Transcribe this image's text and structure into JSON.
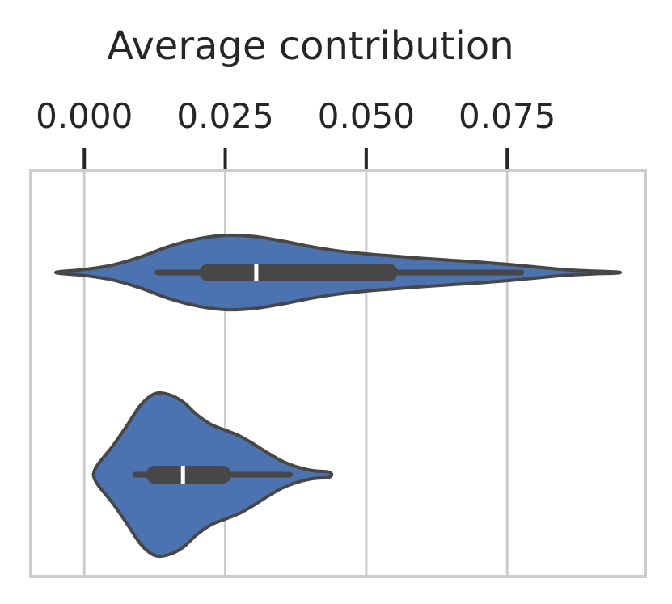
{
  "chart_data": {
    "type": "violin",
    "orientation": "horizontal",
    "title": "",
    "xlabel": "Average contribution",
    "x_axis_position": "top",
    "xlim": [
      -0.0095,
      0.0995
    ],
    "xticks": [
      0.0,
      0.025,
      0.05,
      0.075
    ],
    "xtick_labels": [
      "0.000",
      "0.025",
      "0.050",
      "0.075"
    ],
    "grid": true,
    "colors": {
      "violin_fill": "#4c72b0",
      "violin_edge": "#474747",
      "box": "#474747",
      "median": "#ffffff",
      "grid": "#cccccc",
      "frame": "#cccccc"
    },
    "series": [
      {
        "whisker_low": 0.013,
        "q1": 0.022,
        "median": 0.0305,
        "q3": 0.054,
        "whisker_high": 0.0775,
        "density": [
          [
            -0.0045,
            0.02
          ],
          [
            0.0,
            0.08
          ],
          [
            0.005,
            0.2
          ],
          [
            0.01,
            0.42
          ],
          [
            0.015,
            0.7
          ],
          [
            0.02,
            0.9
          ],
          [
            0.025,
            1.0
          ],
          [
            0.03,
            0.97
          ],
          [
            0.035,
            0.85
          ],
          [
            0.04,
            0.7
          ],
          [
            0.045,
            0.58
          ],
          [
            0.05,
            0.5
          ],
          [
            0.055,
            0.44
          ],
          [
            0.06,
            0.38
          ],
          [
            0.065,
            0.33
          ],
          [
            0.07,
            0.28
          ],
          [
            0.075,
            0.22
          ],
          [
            0.08,
            0.15
          ],
          [
            0.085,
            0.08
          ],
          [
            0.09,
            0.04
          ],
          [
            0.0945,
            0.015
          ]
        ]
      },
      {
        "whisker_low": 0.009,
        "q1": 0.0125,
        "median": 0.0175,
        "q3": 0.0245,
        "whisker_high": 0.0365,
        "density": [
          [
            0.002,
            0.08
          ],
          [
            0.005,
            0.35
          ],
          [
            0.0075,
            0.6
          ],
          [
            0.01,
            0.86
          ],
          [
            0.0125,
            1.0
          ],
          [
            0.015,
            0.99
          ],
          [
            0.0175,
            0.9
          ],
          [
            0.02,
            0.74
          ],
          [
            0.0225,
            0.62
          ],
          [
            0.025,
            0.55
          ],
          [
            0.0275,
            0.48
          ],
          [
            0.03,
            0.38
          ],
          [
            0.0325,
            0.27
          ],
          [
            0.035,
            0.17
          ],
          [
            0.0375,
            0.1
          ],
          [
            0.0405,
            0.05
          ],
          [
            0.0435,
            0.03
          ]
        ]
      }
    ]
  }
}
